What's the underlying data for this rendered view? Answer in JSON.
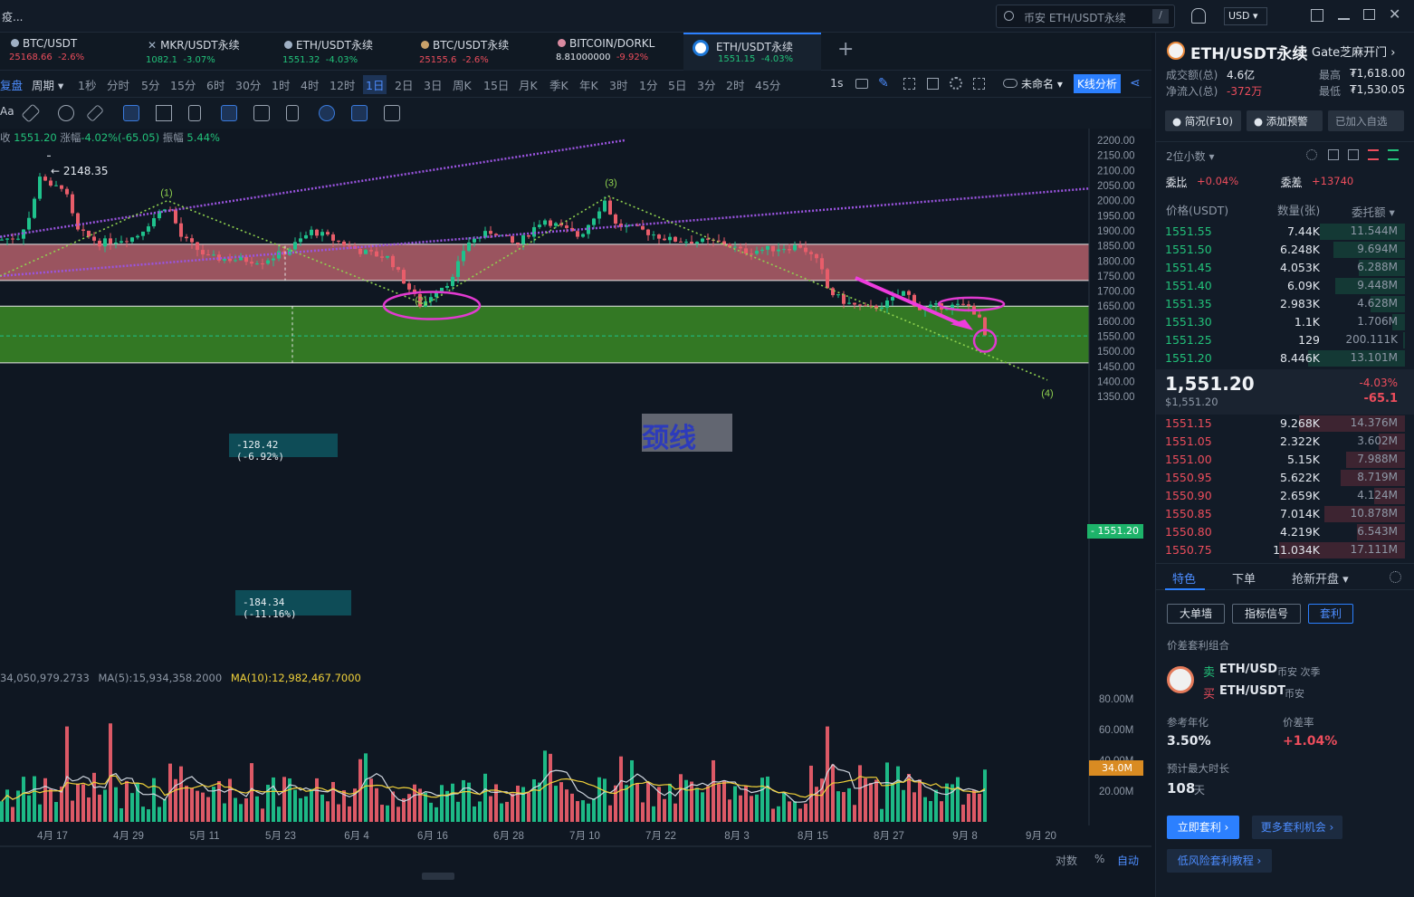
{
  "topbar": {
    "left_text": "疫...",
    "search_placeholder": "币安 ETH/USDT永续",
    "search_shortcut": "/",
    "currency": "USD"
  },
  "tabs": [
    {
      "name": "BTC/USDT",
      "price": "25168.66",
      "change": "-2.6%"
    },
    {
      "name": "MKR/USDT永续",
      "price": "1082.1",
      "change": "-3.07%"
    },
    {
      "name": "ETH/USDT永续",
      "price": "1551.32",
      "change": "-4.03%"
    },
    {
      "name": "BTC/USDT永续",
      "price": "25155.6",
      "change": "-2.6%"
    },
    {
      "name": "BITCOIN/DORKL",
      "price": "8.81000000",
      "change": "-9.92%"
    },
    {
      "name": "ETH/USDT永续",
      "price": "1551.15",
      "change": "-4.03%"
    }
  ],
  "add_tab": "+",
  "periods": [
    "复盘",
    "周期",
    "1秒",
    "分时",
    "5分",
    "15分",
    "6时",
    "30分",
    "1时",
    "4时",
    "12时",
    "1日",
    "2日",
    "3日",
    "周K",
    "15日",
    "月K",
    "季K",
    "年K",
    "3时",
    "1分",
    "5日",
    "3分",
    "2时",
    "45分"
  ],
  "active_period": "1日",
  "right_tools": {
    "interval": "1s",
    "layout_name": "未命名",
    "kline_btn": "K线分析"
  },
  "chart_info": {
    "close_label": "收",
    "close": "1551.20",
    "chg_label": "涨幅",
    "chg": "-4.02%(-65.05)",
    "amp_label": "振幅",
    "amp": "5.44%",
    "left_cut": "Aa"
  },
  "chart_data": {
    "type": "candlestick",
    "price_axis": [
      "2200.00",
      "2150.00",
      "2100.00",
      "2050.00",
      "2000.00",
      "1950.00",
      "1900.00",
      "1850.00",
      "1800.00",
      "1750.00",
      "1700.00",
      "1650.00",
      "1600.00",
      "1550.00",
      "1500.00",
      "1450.00",
      "1400.00",
      "1350.00"
    ],
    "volume_axis": [
      "80.00M",
      "60.00M",
      "40.00M",
      "20.00M"
    ],
    "date_axis": [
      "4月 17",
      "4月 29",
      "5月 11",
      "5月 23",
      "6月 4",
      "6月 16",
      "6月 28",
      "7月 10",
      "7月 22",
      "8月 3",
      "8月 15",
      "8月 27",
      "9月 8",
      "9月 20"
    ],
    "current_price": "1551.20",
    "current_volume": "34.0M",
    "high_marker": "2148.35",
    "wave_labels": [
      "(1)",
      "(2)",
      "(3)",
      "(4)"
    ],
    "measure_1": "-128.42 (-6.92%)",
    "measure_2": "-184.34 (-11.16%)",
    "neckline_label": "颈线",
    "volume_ma_text": {
      "first": "34,050,979.2733",
      "ma5": "MA(5):15,934,358.2000",
      "ma10": "MA(10):12,982,467.7000"
    },
    "bottom_controls": [
      "对数",
      "%",
      "自动"
    ],
    "zones": [
      {
        "name": "resistance",
        "from": 1735,
        "to": 1855,
        "color": "#f07a85"
      },
      {
        "name": "support",
        "from": 1462,
        "to": 1650,
        "color": "#3a8a24"
      }
    ]
  },
  "side": {
    "pair": "ETH/USDT永续",
    "exchange_link": "Gate芝麻开门",
    "vol_label": "成交额(总)",
    "vol": "4.6亿",
    "net_label": "净流入(总)",
    "net": "-372万",
    "high_label": "最高",
    "high": "₮1,618.00",
    "low_label": "最低",
    "low": "₮1,530.05",
    "btn_brief": "简况(F10)",
    "btn_alert": "添加预警",
    "btn_fav": "已加入自选",
    "decimals": "2位小数",
    "ratio_label": "委比",
    "ratio": "+0.04%",
    "diff_label": "委差",
    "diff": "+13740",
    "col_price": "价格(USDT)",
    "col_qty": "数量(张)",
    "col_total": "委托额",
    "bids_top": [
      {
        "p": "1551.55",
        "q": "7.44K",
        "t": "11.544M"
      },
      {
        "p": "1551.50",
        "q": "6.248K",
        "t": "9.694M"
      },
      {
        "p": "1551.45",
        "q": "4.053K",
        "t": "6.288M"
      },
      {
        "p": "1551.40",
        "q": "6.09K",
        "t": "9.448M"
      },
      {
        "p": "1551.35",
        "q": "2.983K",
        "t": "4.628M"
      },
      {
        "p": "1551.30",
        "q": "1.1K",
        "t": "1.706M"
      },
      {
        "p": "1551.25",
        "q": "129",
        "t": "200.111K"
      },
      {
        "p": "1551.20",
        "q": "8.446K",
        "t": "13.101M"
      }
    ],
    "last": "1,551.20",
    "last_usd": "$1,551.20",
    "last_pct": "-4.03%",
    "last_abs": "-65.1",
    "asks": [
      {
        "p": "1551.15",
        "q": "9.268K",
        "t": "14.376M"
      },
      {
        "p": "1551.05",
        "q": "2.322K",
        "t": "3.602M"
      },
      {
        "p": "1551.00",
        "q": "5.15K",
        "t": "7.988M"
      },
      {
        "p": "1550.95",
        "q": "5.622K",
        "t": "8.719M"
      },
      {
        "p": "1550.90",
        "q": "2.659K",
        "t": "4.124M"
      },
      {
        "p": "1550.85",
        "q": "7.014K",
        "t": "10.878M"
      },
      {
        "p": "1550.80",
        "q": "4.219K",
        "t": "6.543M"
      },
      {
        "p": "1550.75",
        "q": "11.034K",
        "t": "17.111M"
      }
    ],
    "tab1": "特色",
    "tab2": "下单",
    "tab3": "抢新开盘",
    "chip1": "大单墙",
    "chip2": "指标信号",
    "chip3": "套利",
    "arb_title": "价差套利组合",
    "sell_label": "卖",
    "sell_pair": "ETH/USD",
    "sell_ex": "币安 次季",
    "buy_label": "买",
    "buy_pair": "ETH/USDT",
    "buy_ex": "币安",
    "annual_label": "参考年化",
    "annual": "3.50%",
    "spread_label": "价差率",
    "spread": "+1.04%",
    "dur_label": "预计最大时长",
    "dur": "108",
    "dur_unit": "天",
    "btn_now": "立即套利 ›",
    "btn_more": "更多套利机会 ›",
    "btn_tut": "低风险套利教程 ›"
  }
}
